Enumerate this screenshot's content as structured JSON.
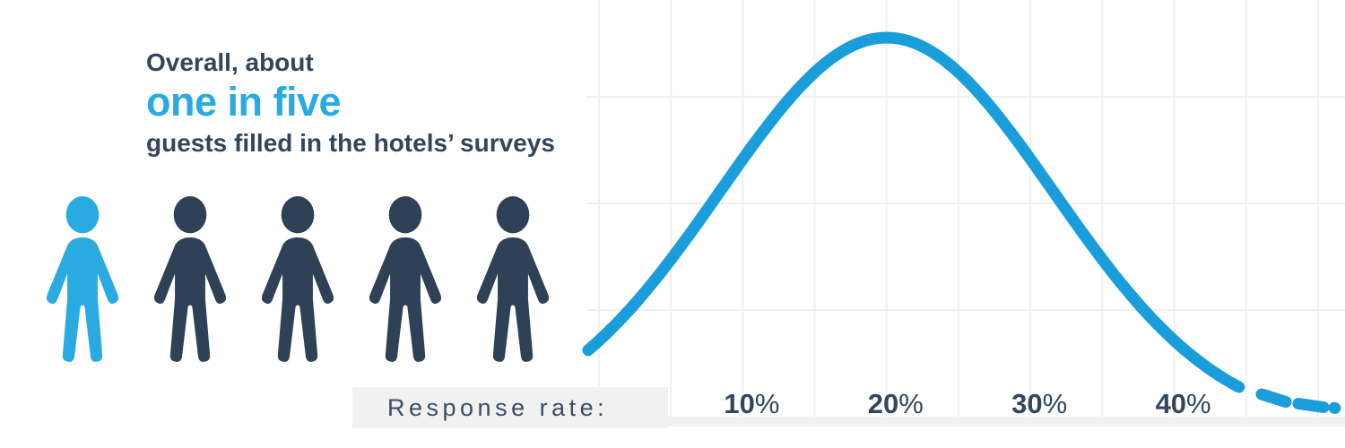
{
  "headline": {
    "line1": "Overall, about",
    "highlight": "one in five",
    "line3": "guests filled in the hotels’ surveys"
  },
  "pictogram": {
    "total": 5,
    "highlighted": 1,
    "highlight_color": "#29abe2",
    "default_color": "#2e4156"
  },
  "axis": {
    "label": "Response rate:"
  },
  "chart_data": {
    "type": "line",
    "subtype": "normal-distribution-curve",
    "title": "Overall, about one in five guests filled in the hotels’ surveys",
    "xlabel": "Response rate:",
    "x_ticks": [
      {
        "pct": 10,
        "num": "10",
        "suffix": "%"
      },
      {
        "pct": 20,
        "num": "20",
        "suffix": "%"
      },
      {
        "pct": 30,
        "num": "30",
        "suffix": "%"
      },
      {
        "pct": 40,
        "num": "40",
        "suffix": "%"
      }
    ],
    "x_range_pct": [
      0,
      50
    ],
    "grid": {
      "show": true,
      "vertical_every_pct": 5,
      "horizontal_lines": 3
    },
    "distribution": {
      "shape": "normal",
      "mean_pct": 20,
      "sd_pct": 11.6,
      "peak_pct": 20
    },
    "line_style": {
      "solid_to_pct": 44.6,
      "dashed_tail": true,
      "stroke_width": 13
    },
    "legend": "none",
    "colors": {
      "curve": "#199edb",
      "grid": "#f0eff1",
      "band": "#f2f1f2",
      "accent": "#29abe2",
      "text_dark": "#32455a",
      "tick_text": "#33475b"
    }
  }
}
